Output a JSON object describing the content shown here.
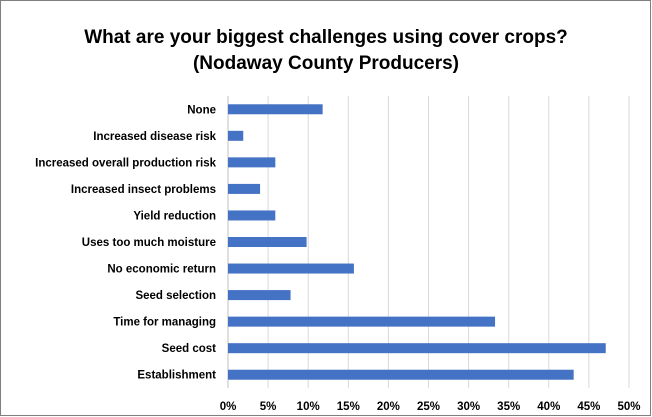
{
  "chart_data": {
    "type": "bar",
    "orientation": "horizontal",
    "title": "What are your biggest challenges using cover crops?",
    "subtitle": "(Nodaway County Producers)",
    "categories": [
      "None",
      "Increased disease risk",
      "Increased overall production risk",
      "Increased insect problems",
      "Yield reduction",
      "Uses too much moisture",
      "No economic return",
      "Seed selection",
      "Time for managing",
      "Seed cost",
      "Establishment"
    ],
    "values": [
      11.8,
      1.9,
      5.9,
      4.0,
      5.9,
      9.8,
      15.7,
      7.8,
      33.3,
      47.1,
      43.1
    ],
    "xlim": [
      0,
      50
    ],
    "xticks": [
      "0%",
      "5%",
      "10%",
      "15%",
      "20%",
      "25%",
      "30%",
      "35%",
      "40%",
      "45%",
      "50%"
    ],
    "xlabel": "",
    "ylabel": "",
    "grid": "vertical",
    "legend": "none",
    "colors": {
      "bar": "#4472c4",
      "grid": "#d9d9d9",
      "axis": "#bfbfbf"
    }
  }
}
